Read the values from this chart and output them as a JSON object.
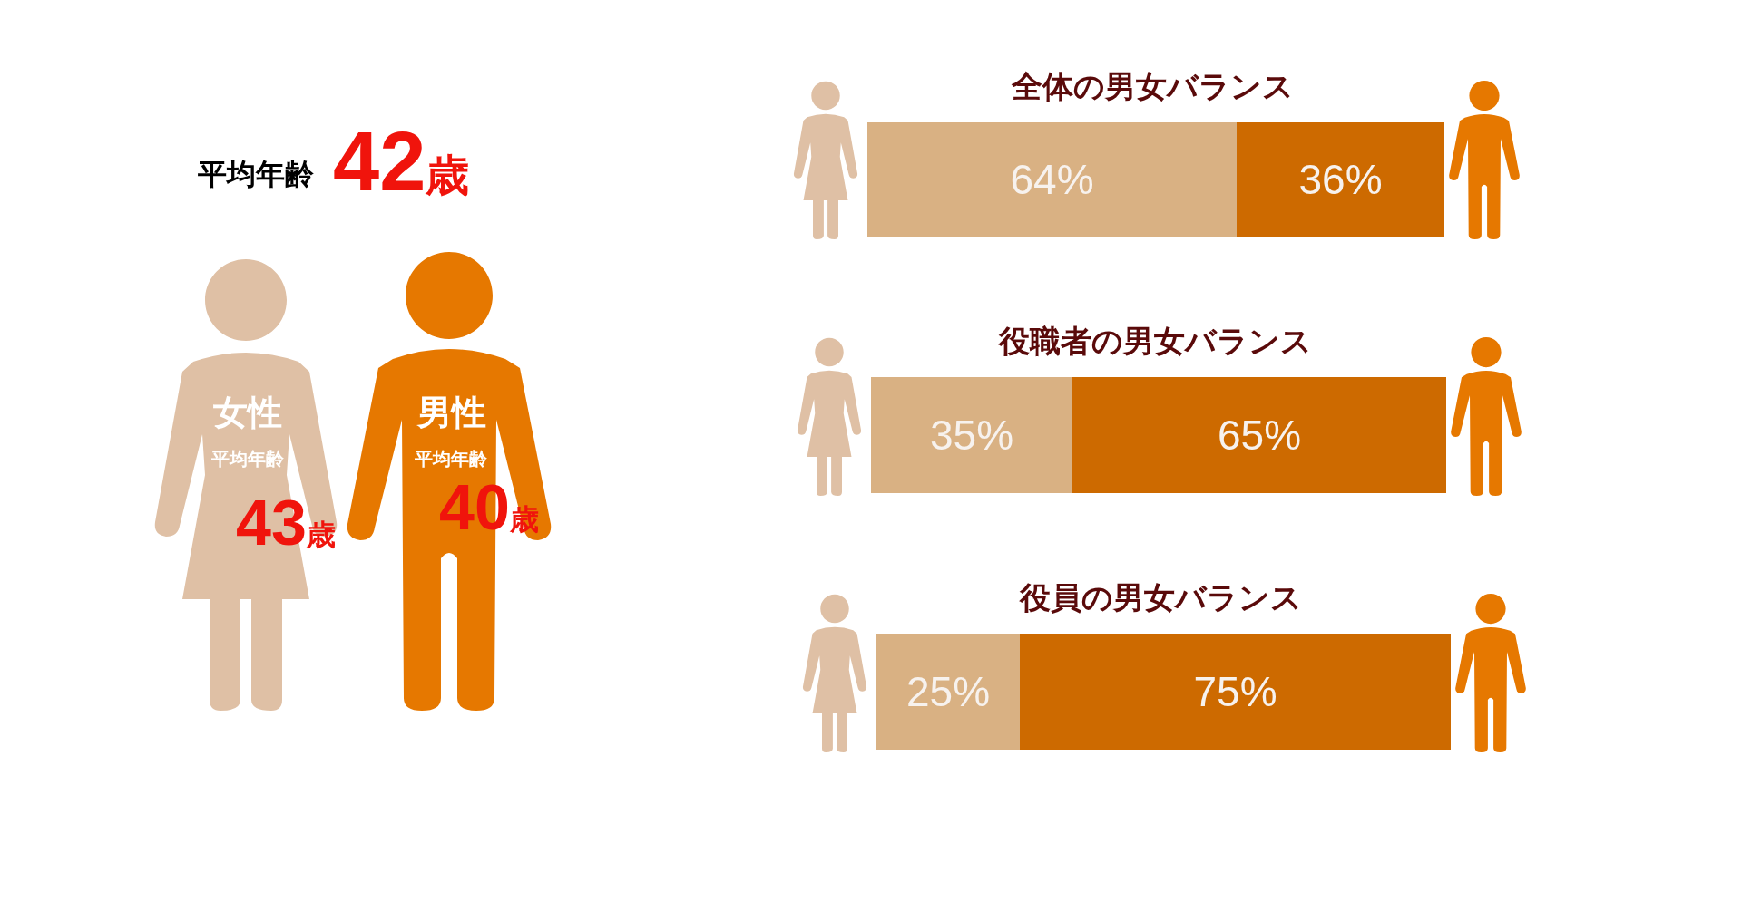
{
  "chart_data": [
    {
      "type": "other",
      "title": "平均年齢",
      "subtitle": "42歳",
      "annotations": [
        "女性",
        "平均年齢",
        "43歳",
        "男性",
        "平均年齢",
        "40歳"
      ],
      "colors": [
        "#dfc0a5",
        "#e67800"
      ]
    },
    {
      "type": "bar",
      "orientation": "horizontal",
      "stacked": true,
      "title": "全体の男女バランス",
      "categories": [
        null
      ],
      "series": [
        {
          "color": "#d9b183",
          "values": [
            64
          ],
          "value_labels": [
            "64%"
          ]
        },
        {
          "color": "#cd6a00",
          "values": [
            36
          ],
          "value_labels": [
            "36%"
          ]
        }
      ],
      "xlim": [
        0,
        100
      ]
    },
    {
      "type": "bar",
      "orientation": "horizontal",
      "stacked": true,
      "title": "役職者の男女バランス",
      "categories": [
        null
      ],
      "series": [
        {
          "color": "#d9b183",
          "values": [
            35
          ],
          "value_labels": [
            "35%"
          ]
        },
        {
          "color": "#cd6a00",
          "values": [
            65
          ],
          "value_labels": [
            "65%"
          ]
        }
      ],
      "xlim": [
        0,
        100
      ]
    },
    {
      "type": "bar",
      "orientation": "horizontal",
      "stacked": true,
      "title": "役員の男女バランス",
      "categories": [
        null
      ],
      "series": [
        {
          "color": "#d9b183",
          "values": [
            25
          ],
          "value_labels": [
            "25%"
          ]
        },
        {
          "color": "#cd6a00",
          "values": [
            75
          ],
          "value_labels": [
            "75%"
          ]
        }
      ],
      "xlim": [
        0,
        100
      ]
    }
  ]
}
